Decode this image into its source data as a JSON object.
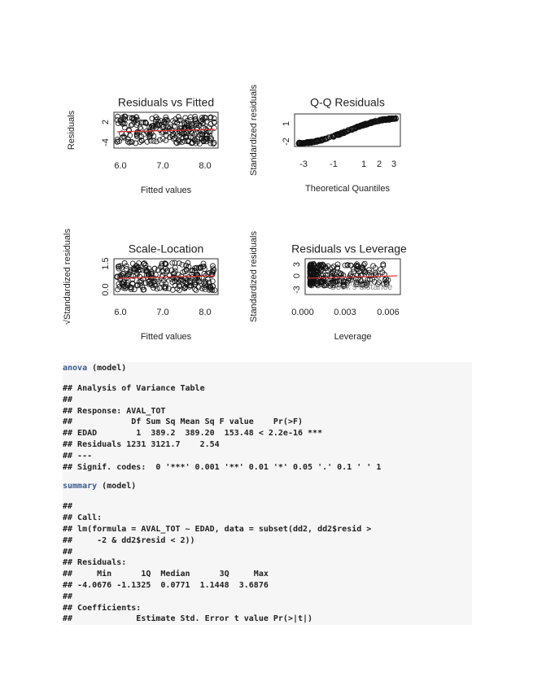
{
  "figures": [
    {
      "title": "Residuals vs Fitted",
      "xlabel": "Fitted values",
      "ylabel": "Residuals",
      "xticks": [
        "6.0",
        "7.0",
        "8.0"
      ],
      "yticks": [
        "2",
        "-4"
      ]
    },
    {
      "title": "Q-Q Residuals",
      "xlabel": "Theoretical Quantiles",
      "ylabel": "Standardized residuals",
      "xticks": [
        "-3",
        "-1",
        "1",
        "2",
        "3"
      ],
      "yticks": [
        "1",
        "-2"
      ]
    },
    {
      "title": "Scale-Location",
      "xlabel": "Fitted values",
      "ylabel": "√Standardized residuals",
      "xticks": [
        "6.0",
        "7.0",
        "8.0"
      ],
      "yticks": [
        "1.5",
        "0.0"
      ]
    },
    {
      "title": "Residuals vs Leverage",
      "xlabel": "Leverage",
      "ylabel": "Standardized residuals",
      "xticks": [
        "0.000",
        "0.003",
        "0.006"
      ],
      "yticks": [
        "3",
        "0",
        "-3"
      ],
      "note": "Cook's distance"
    }
  ],
  "code": [
    {
      "fn": "anova",
      "arg": " (model)",
      "output": [
        "## Analysis of Variance Table",
        "##",
        "## Response: AVAL_TOT",
        "##            Df Sum Sq Mean Sq F value    Pr(>F)",
        "## EDAD        1  389.2  389.20  153.48 < 2.2e-16 ***",
        "## Residuals 1231 3121.7    2.54",
        "## ---",
        "## Signif. codes:  0 '***' 0.001 '**' 0.01 '*' 0.05 '.' 0.1 ' ' 1"
      ]
    },
    {
      "fn": "summary",
      "arg": " (model)",
      "output": [
        "##",
        "## Call:",
        "## lm(formula = AVAL_TOT ~ EDAD, data = subset(dd2, dd2$resid >",
        "##     -2 & dd2$resid < 2))",
        "##",
        "## Residuals:",
        "##     Min      1Q  Median      3Q     Max",
        "## -4.0676 -1.1325  0.0771  1.1448  3.6876",
        "##",
        "## Coefficients:",
        "##             Estimate Std. Error t value Pr(>|t|)"
      ]
    }
  ]
}
